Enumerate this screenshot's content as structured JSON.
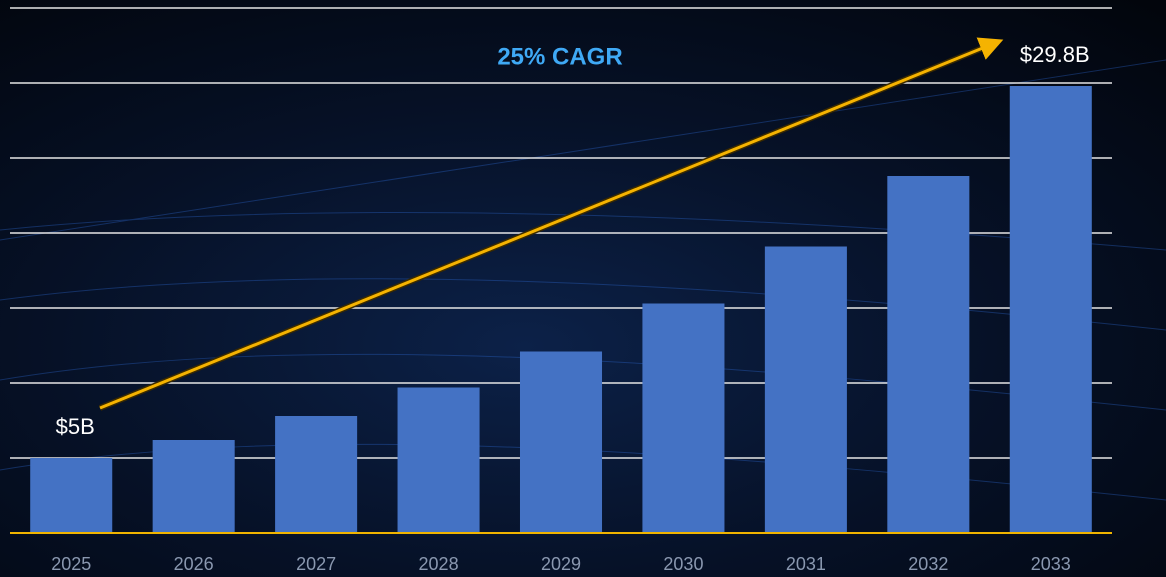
{
  "chart_data": {
    "type": "bar",
    "annotation": "25% CAGR",
    "categories": [
      "2025",
      "2026",
      "2027",
      "2028",
      "2029",
      "2030",
      "2031",
      "2032",
      "2033"
    ],
    "values": [
      5,
      6.2,
      7.8,
      9.7,
      12.1,
      15.3,
      19.1,
      23.8,
      29.8
    ],
    "value_labels": [
      "$5B",
      null,
      null,
      null,
      null,
      null,
      null,
      null,
      "$29.8B"
    ],
    "color": "#4472c4",
    "ylim": [
      0,
      35
    ],
    "yticks": [
      5,
      10,
      15,
      20,
      25,
      30,
      35
    ],
    "grid": true
  }
}
